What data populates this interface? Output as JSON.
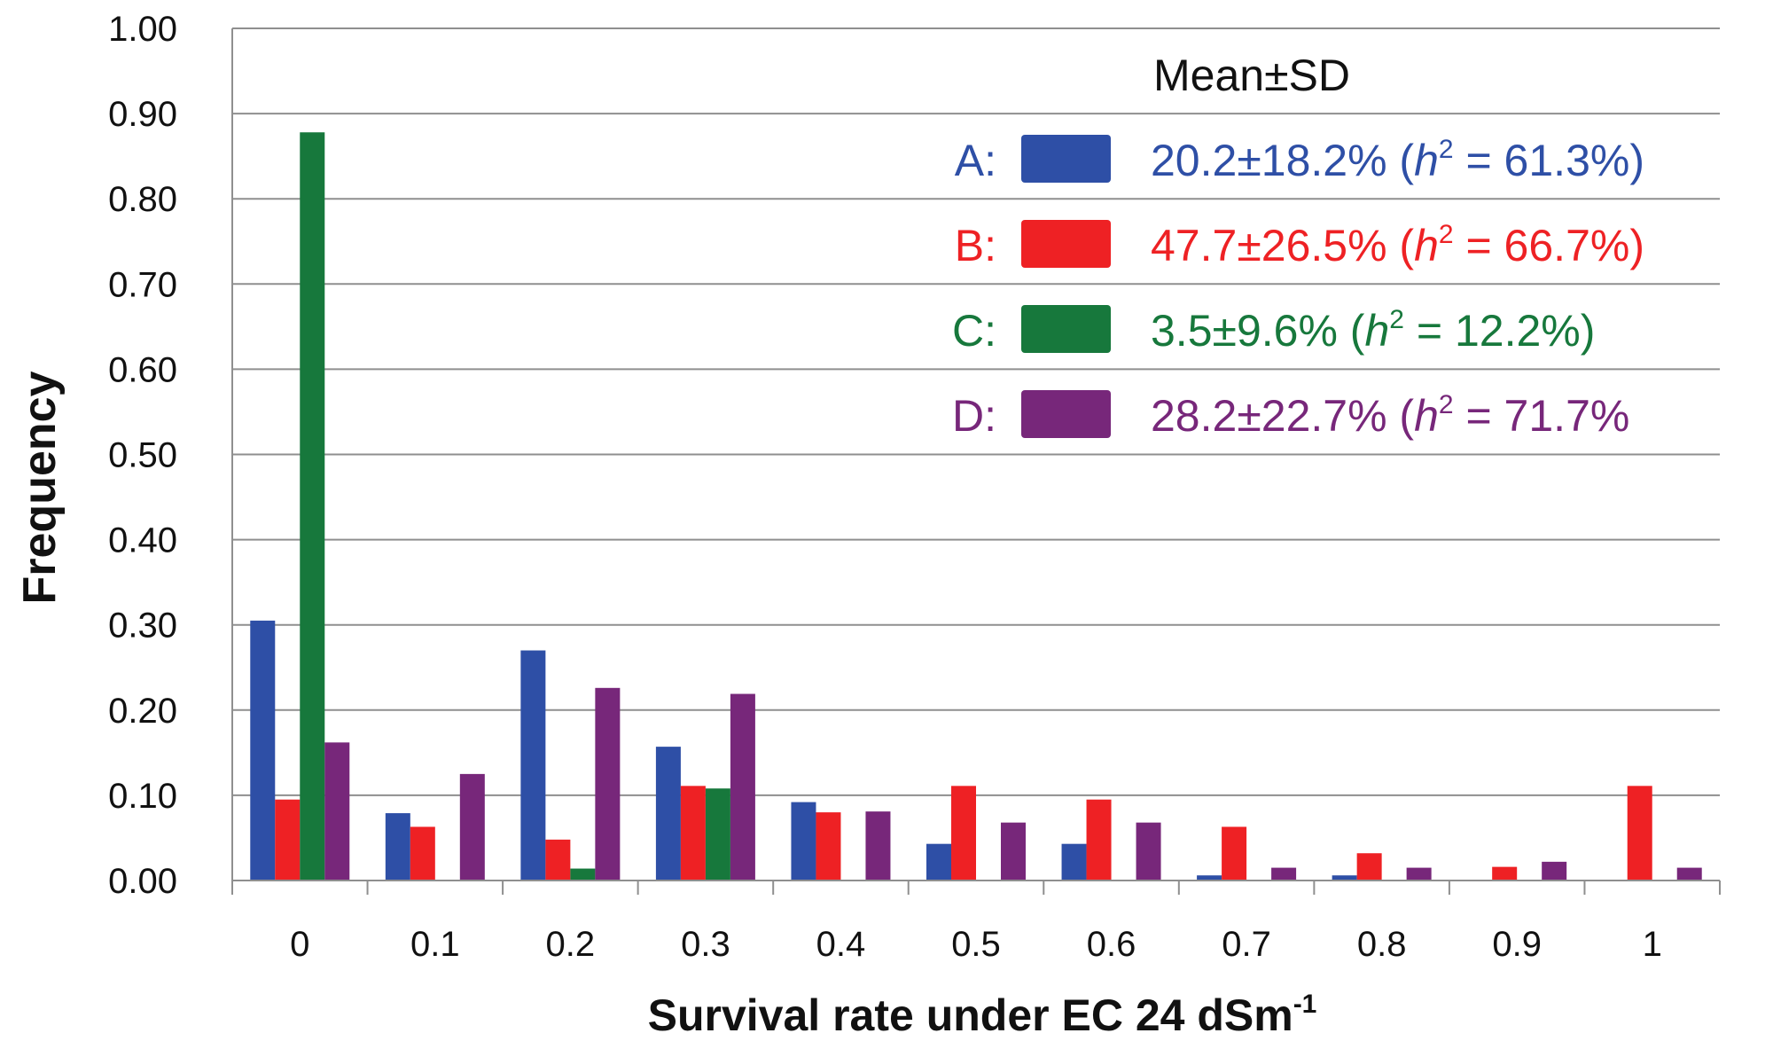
{
  "chart_data": {
    "type": "bar",
    "categories": [
      "0",
      "0.1",
      "0.2",
      "0.3",
      "0.4",
      "0.5",
      "0.6",
      "0.7",
      "0.8",
      "0.9",
      "1"
    ],
    "series": [
      {
        "name": "A",
        "color": "#2e4fa6",
        "values": [
          0.305,
          0.079,
          0.27,
          0.157,
          0.092,
          0.043,
          0.043,
          0.006,
          0.006,
          0.0,
          0.0
        ]
      },
      {
        "name": "B",
        "color": "#ee2124",
        "values": [
          0.095,
          0.063,
          0.048,
          0.111,
          0.08,
          0.111,
          0.095,
          0.063,
          0.032,
          0.016,
          0.111
        ]
      },
      {
        "name": "C",
        "color": "#17783c",
        "values": [
          0.878,
          0.0,
          0.014,
          0.108,
          0.0,
          0.0,
          0.0,
          0.0,
          0.0,
          0.0,
          0.0
        ]
      },
      {
        "name": "D",
        "color": "#77277a",
        "values": [
          0.162,
          0.125,
          0.226,
          0.219,
          0.081,
          0.068,
          0.068,
          0.015,
          0.015,
          0.022,
          0.015
        ]
      }
    ],
    "ylim": [
      0,
      1.0
    ],
    "yticks": [
      "0.00",
      "0.10",
      "0.20",
      "0.30",
      "0.40",
      "0.50",
      "0.60",
      "0.70",
      "0.80",
      "0.90",
      "1.00"
    ],
    "xlabel": "Survival rate under EC 24 dSm",
    "xlabel_sup": "-1",
    "ylabel": "Frequency",
    "grid": true,
    "legend": {
      "title": "Mean±SD",
      "position": "top-right",
      "entries": [
        {
          "label": "A:",
          "stats": "20.2±18.2% (",
          "h": "h",
          "h_sup": "2",
          "h_value": " = 61.3%)"
        },
        {
          "label": "B:",
          "stats": "47.7±26.5% (",
          "h": "h",
          "h_sup": "2",
          "h_value": " = 66.7%)"
        },
        {
          "label": "C:",
          "stats": "3.5±9.6% (",
          "h": "h",
          "h_sup": "2",
          "h_value": " = 12.2%)"
        },
        {
          "label": "D:",
          "stats": "28.2±22.7% (",
          "h": "h",
          "h_sup": "2",
          "h_value": " = 71.7%"
        }
      ]
    }
  }
}
